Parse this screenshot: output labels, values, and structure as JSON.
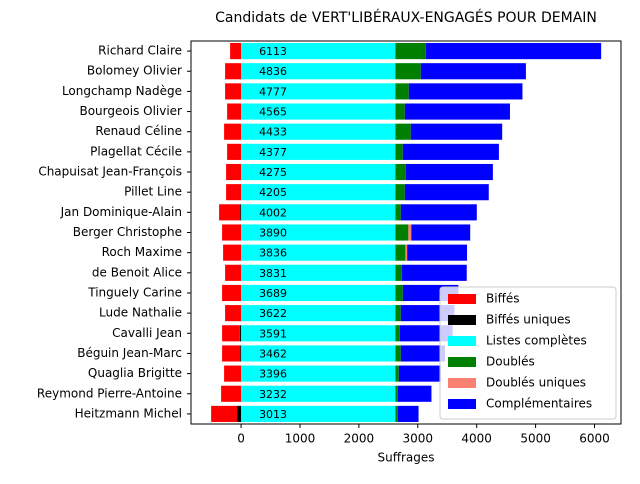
{
  "chart_data": {
    "type": "stacked-barh",
    "title": "Candidats de VERT'LIBÉRAUX-ENGAGÉS POUR DEMAIN",
    "xlabel": "Suffrages",
    "categories": [
      "Richard Claire",
      "Bolomey Olivier",
      "Longchamp Nadège",
      "Bourgeois Olivier",
      "Renaud Céline",
      "Plagellat Cécile",
      "Chapuisat Jean-François",
      "Pillet Line",
      "Jan Dominique-Alain",
      "Berger Christophe",
      "Roch Maxime",
      "de Benoit Alice",
      "Tinguely Carine",
      "Lude Nathalie",
      "Cavalli Jean",
      "Béguin Jean-Marc",
      "Quaglia Brigitte",
      "Reymond Pierre-Antoine",
      "Heitzmann Michel"
    ],
    "totals": [
      6113,
      4836,
      4777,
      4565,
      4433,
      4377,
      4275,
      4205,
      4002,
      3890,
      3836,
      3831,
      3689,
      3622,
      3591,
      3462,
      3396,
      3232,
      3013
    ],
    "series": [
      {
        "name": "Biffés",
        "color": "#ff0000",
        "values": [
          -186,
          -271,
          -271,
          -237,
          -288,
          -237,
          -254,
          -254,
          -358,
          -322,
          -305,
          -271,
          -322,
          -271,
          -302,
          -307,
          -288,
          -339,
          -440
        ]
      },
      {
        "name": "Biffés uniques",
        "color": "#000000",
        "values": [
          0,
          0,
          0,
          0,
          0,
          0,
          0,
          0,
          -15,
          0,
          0,
          0,
          0,
          0,
          -20,
          -15,
          0,
          0,
          -68
        ]
      },
      {
        "name": "Listes complètes",
        "color": "#00ffff",
        "values": [
          2620,
          2620,
          2620,
          2620,
          2620,
          2620,
          2620,
          2620,
          2620,
          2620,
          2620,
          2620,
          2620,
          2620,
          2620,
          2620,
          2620,
          2620,
          2620
        ]
      },
      {
        "name": "Doublés",
        "color": "#008000",
        "values": [
          516,
          431,
          227,
          160,
          261,
          126,
          177,
          160,
          92,
          220,
          170,
          109,
          126,
          92,
          75,
          92,
          58,
          41,
          41
        ]
      },
      {
        "name": "Doublés uniques",
        "color": "#fa8072",
        "values": [
          0,
          0,
          0,
          0,
          0,
          0,
          0,
          0,
          0,
          50,
          30,
          0,
          0,
          0,
          0,
          0,
          0,
          0,
          0
        ]
      },
      {
        "name": "Complémentaires",
        "color": "#0000ff",
        "values": [
          2977,
          1785,
          1930,
          1785,
          1552,
          1631,
          1478,
          1425,
          1290,
          1000,
          1016,
          1102,
          943,
          910,
          896,
          750,
          718,
          571,
          352
        ]
      }
    ],
    "xlim": [
      -850,
      6450
    ],
    "xticks": [
      0,
      1000,
      2000,
      3000,
      4000,
      5000,
      6000
    ],
    "legend": "lower right"
  }
}
